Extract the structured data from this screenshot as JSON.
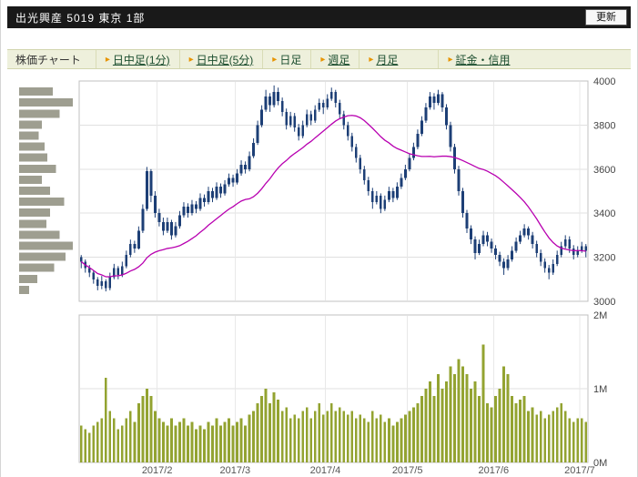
{
  "header": {
    "title": "出光興産  5019  東京 1部",
    "refresh_label": "更新"
  },
  "toolbar": {
    "label": "株価チャート",
    "tabs": [
      {
        "label": "日中足(1分)",
        "active": false
      },
      {
        "label": "日中足(5分)",
        "active": false
      },
      {
        "label": "日足",
        "active": true
      },
      {
        "label": "週足",
        "active": false
      },
      {
        "label": "月足",
        "active": false
      },
      {
        "label": "証金・信用",
        "active": false
      }
    ]
  },
  "icons": {
    "tab_marker": "▸"
  },
  "colors": {
    "titlebar_bg": "#191919",
    "tabbar_bg": "#eef0dc",
    "marker_orange": "#e79400",
    "link_green": "#1b4d2e",
    "candle_navy": "#1d3f76",
    "ma_magenta": "#b800b0",
    "volume_olive": "#93a331",
    "profile_gray": "#9e9e90"
  },
  "chart_data": {
    "type": "candlestick-with-volume",
    "price_axis": {
      "min": 3000,
      "max": 4000,
      "ticks": [
        3000,
        3200,
        3400,
        3600,
        3800,
        4000
      ]
    },
    "volume_axis": {
      "max_m": 2,
      "tick_labels": [
        "0M",
        "1M",
        "2M"
      ]
    },
    "x_tick_labels": [
      "2017/2",
      "2017/3",
      "2017/4",
      "2017/5",
      "2017/6",
      "2017/7"
    ],
    "month_start_indices": [
      19,
      38,
      60,
      80,
      101,
      122
    ],
    "ma_window": 25,
    "candles": [
      [
        3200,
        3210,
        3150,
        3180
      ],
      [
        3180,
        3190,
        3130,
        3150
      ],
      [
        3150,
        3165,
        3110,
        3130
      ],
      [
        3130,
        3140,
        3080,
        3100
      ],
      [
        3100,
        3110,
        3050,
        3070
      ],
      [
        3070,
        3115,
        3055,
        3090
      ],
      [
        3090,
        3100,
        3045,
        3060
      ],
      [
        3060,
        3130,
        3050,
        3110
      ],
      [
        3110,
        3170,
        3100,
        3150
      ],
      [
        3150,
        3160,
        3100,
        3120
      ],
      [
        3120,
        3180,
        3110,
        3160
      ],
      [
        3160,
        3230,
        3150,
        3210
      ],
      [
        3210,
        3280,
        3200,
        3260
      ],
      [
        3260,
        3275,
        3220,
        3240
      ],
      [
        3240,
        3340,
        3235,
        3320
      ],
      [
        3320,
        3440,
        3310,
        3420
      ],
      [
        3420,
        3610,
        3410,
        3590
      ],
      [
        3590,
        3600,
        3450,
        3480
      ],
      [
        3480,
        3500,
        3380,
        3400
      ],
      [
        3400,
        3420,
        3340,
        3360
      ],
      [
        3360,
        3380,
        3300,
        3320
      ],
      [
        3320,
        3380,
        3310,
        3360
      ],
      [
        3360,
        3370,
        3280,
        3300
      ],
      [
        3300,
        3360,
        3290,
        3340
      ],
      [
        3340,
        3410,
        3330,
        3390
      ],
      [
        3390,
        3450,
        3380,
        3430
      ],
      [
        3430,
        3445,
        3380,
        3400
      ],
      [
        3400,
        3460,
        3390,
        3440
      ],
      [
        3440,
        3455,
        3400,
        3420
      ],
      [
        3420,
        3490,
        3410,
        3470
      ],
      [
        3470,
        3485,
        3430,
        3450
      ],
      [
        3450,
        3520,
        3440,
        3500
      ],
      [
        3500,
        3515,
        3450,
        3470
      ],
      [
        3470,
        3540,
        3460,
        3520
      ],
      [
        3520,
        3535,
        3470,
        3490
      ],
      [
        3490,
        3550,
        3480,
        3530
      ],
      [
        3530,
        3580,
        3520,
        3560
      ],
      [
        3560,
        3575,
        3520,
        3540
      ],
      [
        3540,
        3600,
        3530,
        3580
      ],
      [
        3580,
        3640,
        3570,
        3620
      ],
      [
        3620,
        3635,
        3580,
        3600
      ],
      [
        3600,
        3680,
        3590,
        3660
      ],
      [
        3660,
        3740,
        3650,
        3720
      ],
      [
        3720,
        3820,
        3710,
        3800
      ],
      [
        3800,
        3890,
        3790,
        3870
      ],
      [
        3870,
        3960,
        3860,
        3930
      ],
      [
        3930,
        3945,
        3860,
        3890
      ],
      [
        3890,
        3980,
        3880,
        3950
      ],
      [
        3950,
        3970,
        3890,
        3910
      ],
      [
        3910,
        3925,
        3840,
        3860
      ],
      [
        3860,
        3875,
        3780,
        3800
      ],
      [
        3800,
        3860,
        3790,
        3840
      ],
      [
        3840,
        3855,
        3770,
        3790
      ],
      [
        3790,
        3805,
        3730,
        3750
      ],
      [
        3750,
        3820,
        3740,
        3800
      ],
      [
        3800,
        3870,
        3790,
        3850
      ],
      [
        3850,
        3865,
        3800,
        3820
      ],
      [
        3820,
        3890,
        3810,
        3870
      ],
      [
        3870,
        3920,
        3860,
        3900
      ],
      [
        3900,
        3915,
        3850,
        3880
      ],
      [
        3880,
        3940,
        3870,
        3920
      ],
      [
        3920,
        3970,
        3910,
        3950
      ],
      [
        3950,
        3960,
        3880,
        3900
      ],
      [
        3900,
        3915,
        3830,
        3850
      ],
      [
        3850,
        3865,
        3780,
        3800
      ],
      [
        3800,
        3815,
        3730,
        3750
      ],
      [
        3750,
        3765,
        3680,
        3700
      ],
      [
        3700,
        3715,
        3630,
        3650
      ],
      [
        3650,
        3665,
        3580,
        3600
      ],
      [
        3600,
        3615,
        3530,
        3550
      ],
      [
        3550,
        3565,
        3480,
        3500
      ],
      [
        3500,
        3515,
        3420,
        3450
      ],
      [
        3450,
        3500,
        3440,
        3480
      ],
      [
        3480,
        3490,
        3400,
        3420
      ],
      [
        3420,
        3480,
        3410,
        3460
      ],
      [
        3460,
        3520,
        3450,
        3500
      ],
      [
        3500,
        3515,
        3450,
        3470
      ],
      [
        3470,
        3540,
        3460,
        3520
      ],
      [
        3520,
        3580,
        3510,
        3560
      ],
      [
        3560,
        3620,
        3550,
        3600
      ],
      [
        3600,
        3670,
        3590,
        3650
      ],
      [
        3650,
        3720,
        3640,
        3700
      ],
      [
        3700,
        3780,
        3690,
        3760
      ],
      [
        3760,
        3840,
        3750,
        3820
      ],
      [
        3820,
        3900,
        3810,
        3880
      ],
      [
        3880,
        3950,
        3870,
        3930
      ],
      [
        3930,
        3945,
        3870,
        3900
      ],
      [
        3900,
        3960,
        3890,
        3940
      ],
      [
        3940,
        3950,
        3860,
        3880
      ],
      [
        3880,
        3895,
        3780,
        3800
      ],
      [
        3800,
        3815,
        3680,
        3700
      ],
      [
        3700,
        3715,
        3580,
        3600
      ],
      [
        3600,
        3615,
        3480,
        3500
      ],
      [
        3500,
        3515,
        3380,
        3400
      ],
      [
        3400,
        3415,
        3310,
        3330
      ],
      [
        3330,
        3345,
        3260,
        3280
      ],
      [
        3280,
        3295,
        3190,
        3220
      ],
      [
        3220,
        3280,
        3210,
        3260
      ],
      [
        3260,
        3320,
        3250,
        3300
      ],
      [
        3300,
        3315,
        3250,
        3270
      ],
      [
        3270,
        3285,
        3220,
        3240
      ],
      [
        3240,
        3255,
        3190,
        3210
      ],
      [
        3210,
        3225,
        3160,
        3180
      ],
      [
        3180,
        3195,
        3120,
        3150
      ],
      [
        3150,
        3210,
        3140,
        3190
      ],
      [
        3190,
        3250,
        3180,
        3230
      ],
      [
        3230,
        3290,
        3220,
        3270
      ],
      [
        3270,
        3320,
        3260,
        3300
      ],
      [
        3300,
        3350,
        3290,
        3330
      ],
      [
        3330,
        3340,
        3280,
        3300
      ],
      [
        3300,
        3315,
        3240,
        3260
      ],
      [
        3260,
        3275,
        3200,
        3220
      ],
      [
        3220,
        3235,
        3160,
        3180
      ],
      [
        3180,
        3195,
        3130,
        3150
      ],
      [
        3150,
        3165,
        3100,
        3130
      ],
      [
        3130,
        3190,
        3120,
        3170
      ],
      [
        3170,
        3230,
        3160,
        3210
      ],
      [
        3210,
        3270,
        3200,
        3250
      ],
      [
        3250,
        3300,
        3240,
        3280
      ],
      [
        3280,
        3295,
        3220,
        3240
      ],
      [
        3240,
        3255,
        3190,
        3210
      ],
      [
        3210,
        3250,
        3200,
        3230
      ],
      [
        3230,
        3270,
        3220,
        3250
      ],
      [
        3250,
        3260,
        3200,
        3230
      ]
    ],
    "volumes_m": [
      0.5,
      0.45,
      0.4,
      0.5,
      0.55,
      0.6,
      1.15,
      0.7,
      0.6,
      0.45,
      0.5,
      0.6,
      0.7,
      0.55,
      0.8,
      0.9,
      1.0,
      0.9,
      0.7,
      0.6,
      0.55,
      0.5,
      0.6,
      0.5,
      0.55,
      0.6,
      0.5,
      0.55,
      0.45,
      0.5,
      0.45,
      0.55,
      0.5,
      0.6,
      0.5,
      0.55,
      0.6,
      0.5,
      0.55,
      0.6,
      0.5,
      0.65,
      0.7,
      0.8,
      0.9,
      1.0,
      0.8,
      0.95,
      0.85,
      0.7,
      0.75,
      0.6,
      0.65,
      0.6,
      0.7,
      0.75,
      0.6,
      0.7,
      0.8,
      0.65,
      0.7,
      0.8,
      0.7,
      0.75,
      0.7,
      0.65,
      0.7,
      0.6,
      0.65,
      0.6,
      0.55,
      0.7,
      0.6,
      0.65,
      0.55,
      0.6,
      0.5,
      0.55,
      0.6,
      0.65,
      0.7,
      0.75,
      0.8,
      0.9,
      1.0,
      1.1,
      0.9,
      1.2,
      1.0,
      1.1,
      1.3,
      1.2,
      1.4,
      1.3,
      1.2,
      1.0,
      1.1,
      0.9,
      1.6,
      0.8,
      0.75,
      0.9,
      1.0,
      1.3,
      1.2,
      0.9,
      0.8,
      0.85,
      0.9,
      0.7,
      0.75,
      0.65,
      0.7,
      0.6,
      0.65,
      0.7,
      0.75,
      0.8,
      0.7,
      0.6,
      0.55,
      0.6,
      0.6,
      0.55
    ],
    "volume_profile": {
      "prices": [
        3950,
        3900,
        3850,
        3800,
        3750,
        3700,
        3650,
        3600,
        3550,
        3500,
        3450,
        3400,
        3350,
        3300,
        3250,
        3200,
        3150,
        3100,
        3050
      ],
      "values": [
        0.6,
        0.95,
        0.72,
        0.4,
        0.35,
        0.45,
        0.5,
        0.65,
        0.4,
        0.55,
        0.8,
        0.55,
        0.48,
        0.72,
        0.95,
        0.82,
        0.62,
        0.32,
        0.18
      ]
    }
  }
}
